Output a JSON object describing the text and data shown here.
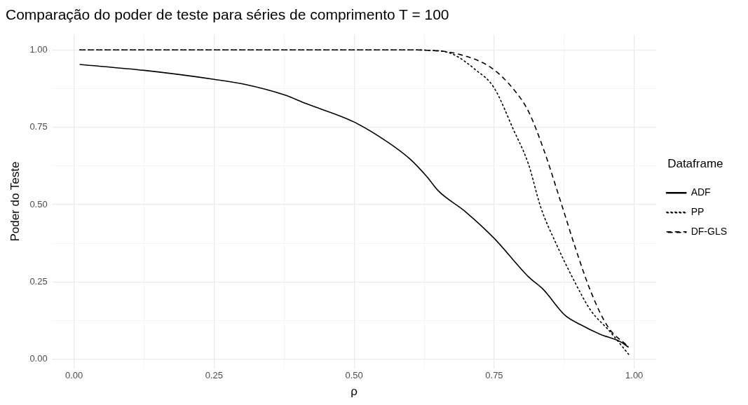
{
  "chart_data": {
    "type": "line",
    "title": "Comparação do poder de teste para séries de comprimento T = 100",
    "xlabel": "ρ",
    "ylabel": "Poder do Teste",
    "legend_title": "Dataframe",
    "legend": "right",
    "grid": true,
    "xlim": [
      -0.04,
      1.04
    ],
    "ylim": [
      -0.03,
      1.05
    ],
    "xticks": [
      {
        "value": 0,
        "label": "0.00"
      },
      {
        "value": 0.125,
        "label": null
      },
      {
        "value": 0.25,
        "label": "0.25"
      },
      {
        "value": 0.375,
        "label": null
      },
      {
        "value": 0.5,
        "label": "0.50"
      },
      {
        "value": 0.625,
        "label": null
      },
      {
        "value": 0.75,
        "label": "0.75"
      },
      {
        "value": 0.875,
        "label": null
      },
      {
        "value": 1,
        "label": "1.00"
      }
    ],
    "yticks": [
      {
        "value": 0,
        "label": "0.00"
      },
      {
        "value": 0.125,
        "label": null
      },
      {
        "value": 0.25,
        "label": "0.25"
      },
      {
        "value": 0.375,
        "label": null
      },
      {
        "value": 0.5,
        "label": "0.50"
      },
      {
        "value": 0.625,
        "label": null
      },
      {
        "value": 0.75,
        "label": "0.75"
      },
      {
        "value": 0.875,
        "label": null
      },
      {
        "value": 1,
        "label": "1.00"
      }
    ],
    "series": [
      {
        "name": "ADF",
        "color": "#000000",
        "line_style": "solid",
        "x": [
          0.01,
          0.125,
          0.25,
          0.307,
          0.375,
          0.415,
          0.5,
          0.56,
          0.6,
          0.63,
          0.65,
          0.7,
          0.75,
          0.811,
          0.838,
          0.876,
          0.904,
          0.939,
          0.975,
          0.99
        ],
        "values": [
          0.953,
          0.934,
          0.905,
          0.888,
          0.855,
          0.826,
          0.767,
          0.702,
          0.647,
          0.59,
          0.545,
          0.475,
          0.391,
          0.267,
          0.225,
          0.143,
          0.112,
          0.081,
          0.057,
          0.039
        ]
      },
      {
        "name": "PP",
        "color": "#000000",
        "line_style": "dotted",
        "x": [
          0.01,
          0.25,
          0.5,
          0.6,
          0.63,
          0.674,
          0.718,
          0.749,
          0.785,
          0.811,
          0.833,
          0.86,
          0.891,
          0.922,
          0.957,
          0.99
        ],
        "values": [
          1,
          1,
          1,
          1,
          0.999,
          0.988,
          0.934,
          0.88,
          0.74,
          0.632,
          0.492,
          0.376,
          0.26,
          0.159,
          0.089,
          0.016
        ]
      },
      {
        "name": "DF-GLS",
        "color": "#000000",
        "line_style": "dashed",
        "x": [
          0.01,
          0.25,
          0.5,
          0.6,
          0.63,
          0.683,
          0.745,
          0.785,
          0.811,
          0.838,
          0.869,
          0.895,
          0.922,
          0.953,
          0.988
        ],
        "values": [
          1,
          1,
          1,
          1,
          0.999,
          0.988,
          0.942,
          0.872,
          0.802,
          0.68,
          0.508,
          0.36,
          0.221,
          0.105,
          0.043
        ]
      }
    ]
  }
}
